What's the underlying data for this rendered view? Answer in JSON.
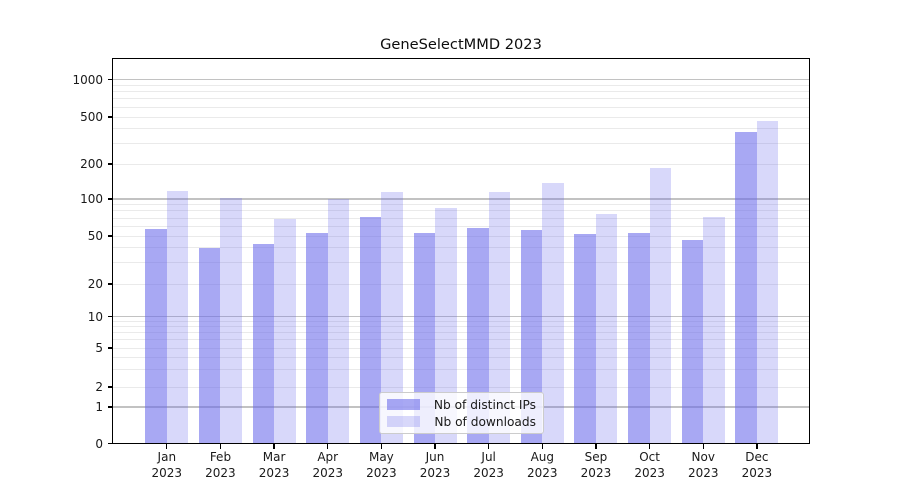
{
  "chart_data": {
    "type": "bar",
    "title": "GeneSelectMMD 2023",
    "categories": [
      "Jan",
      "Feb",
      "Mar",
      "Apr",
      "May",
      "Jun",
      "Jul",
      "Aug",
      "Sep",
      "Oct",
      "Nov",
      "Dec"
    ],
    "year": "2023",
    "series": [
      {
        "name": "Nb of distinct IPs",
        "color": "rgba(105,105,235,0.58)",
        "values": [
          57,
          40,
          43,
          53,
          72,
          53,
          58,
          56,
          52,
          53,
          46,
          370
        ]
      },
      {
        "name": "Nb of downloads",
        "color": "rgba(105,105,235,0.26)",
        "values": [
          118,
          102,
          69,
          100,
          116,
          85,
          116,
          137,
          75,
          185,
          71,
          465
        ]
      }
    ],
    "y_axis": {
      "scale": "symlog",
      "ticks": [
        0,
        1,
        2,
        5,
        10,
        20,
        50,
        100,
        200,
        500,
        1000
      ],
      "ylim": [
        0,
        1000
      ]
    },
    "xlabel": "",
    "ylabel": "",
    "grid": "both",
    "legend_position": "inside-bottom-center",
    "colors": {
      "grid_major": "#c2c2c2",
      "grid_minor": "#eaeaea",
      "axis": "#000000",
      "text": "#1a1a1a"
    }
  }
}
